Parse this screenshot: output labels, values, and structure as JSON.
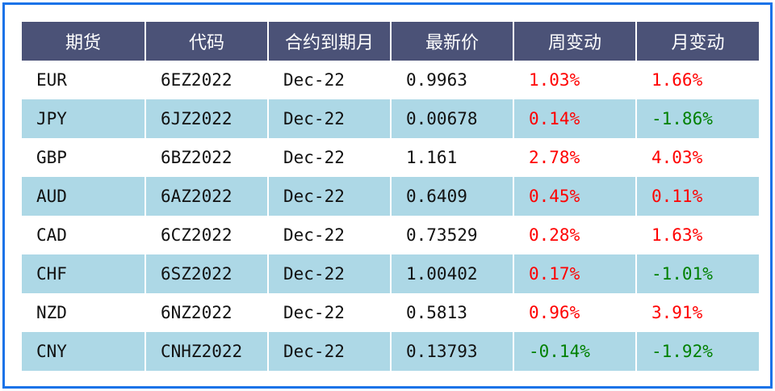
{
  "table": {
    "headers": [
      "期货",
      "代码",
      "合约到期月",
      "最新价",
      "周变动",
      "月变动"
    ],
    "rows": [
      {
        "future": "EUR",
        "code": "6EZ2022",
        "expiry": "Dec-22",
        "last": "0.9963",
        "weekly": "1.03%",
        "monthly": "1.66%"
      },
      {
        "future": "JPY",
        "code": "6JZ2022",
        "expiry": "Dec-22",
        "last": "0.00678",
        "weekly": "0.14%",
        "monthly": "-1.86%"
      },
      {
        "future": "GBP",
        "code": "6BZ2022",
        "expiry": "Dec-22",
        "last": "1.161",
        "weekly": "2.78%",
        "monthly": "4.03%"
      },
      {
        "future": "AUD",
        "code": "6AZ2022",
        "expiry": "Dec-22",
        "last": "0.6409",
        "weekly": "0.45%",
        "monthly": "0.11%"
      },
      {
        "future": "CAD",
        "code": "6CZ2022",
        "expiry": "Dec-22",
        "last": "0.73529",
        "weekly": "0.28%",
        "monthly": "1.63%"
      },
      {
        "future": "CHF",
        "code": "6SZ2022",
        "expiry": "Dec-22",
        "last": "1.00402",
        "weekly": "0.17%",
        "monthly": "-1.01%"
      },
      {
        "future": "NZD",
        "code": "6NZ2022",
        "expiry": "Dec-22",
        "last": "0.5813",
        "weekly": "0.96%",
        "monthly": "3.91%"
      },
      {
        "future": "CNY",
        "code": "CNHZ2022",
        "expiry": "Dec-22",
        "last": "0.13793",
        "weekly": "-0.14%",
        "monthly": "-1.92%"
      }
    ]
  },
  "colors": {
    "header_bg": "#4b5277",
    "stripe_bg": "#add8e6",
    "positive": "#ff0000",
    "negative": "#008000",
    "frame_border": "#1a73e8"
  }
}
